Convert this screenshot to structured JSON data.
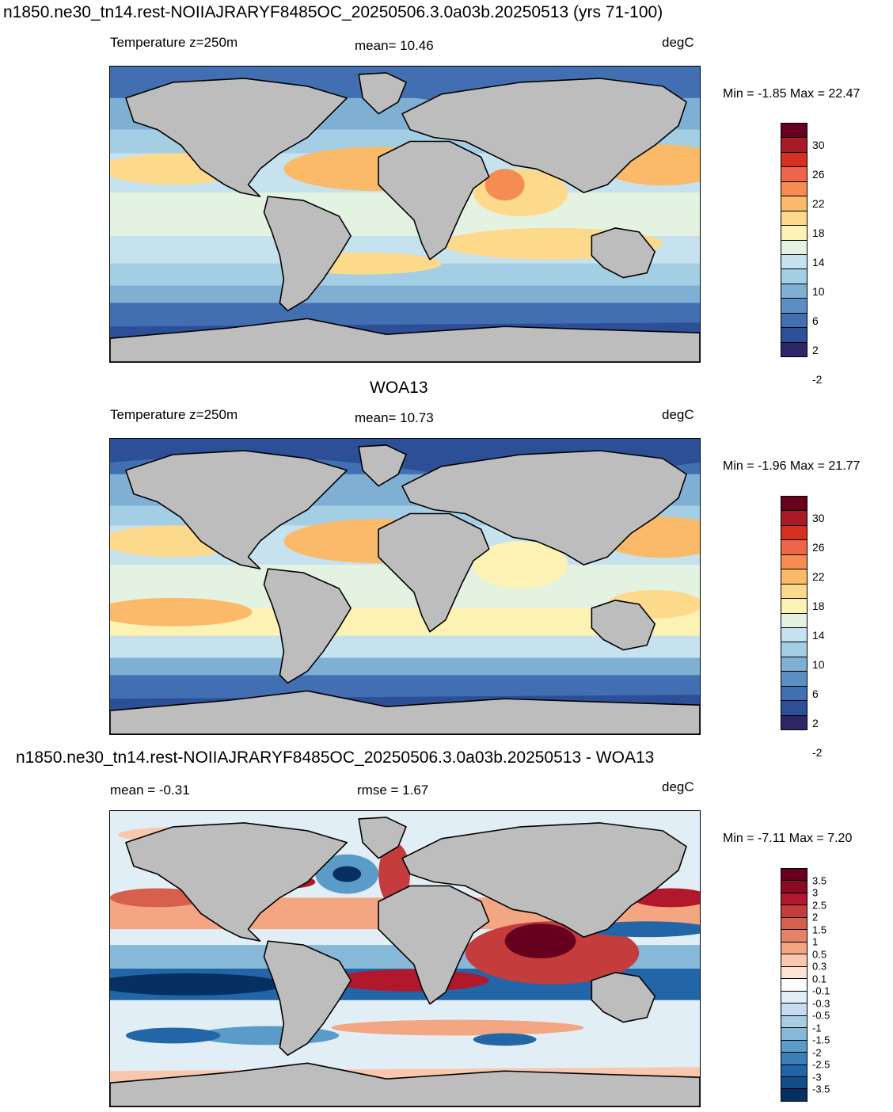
{
  "main_title": "n1850.ne30_tn14.rest-NOIIAJRARYF8485OC_20250506.3.0a03b.20250513 (yrs 71-100)",
  "panels": [
    {
      "id": "model",
      "title": "",
      "left_label": "Temperature z=250m",
      "center_label": "mean=  10.46",
      "units": "degC",
      "minmax": "Min =  -1.85 Max =  22.47",
      "colorbar_labels": [
        "30",
        "26",
        "22",
        "18",
        "14",
        "10",
        "6",
        "2",
        "-2"
      ],
      "colors": [
        "#67001f",
        "#a81a26",
        "#d7301f",
        "#ef6548",
        "#f58d52",
        "#fbb96a",
        "#fdd98b",
        "#fcf2b3",
        "#e4f2e1",
        "#c6e2ee",
        "#a3cee3",
        "#7fb0d4",
        "#5b8fc4",
        "#416fb1",
        "#2c4f97",
        "#2d2768"
      ]
    },
    {
      "id": "obs",
      "title": "WOA13",
      "left_label": "Temperature z=250m",
      "center_label": "mean=  10.73",
      "units": "degC",
      "minmax": "Min =  -1.96 Max =  21.77",
      "colorbar_labels": [
        "30",
        "26",
        "22",
        "18",
        "14",
        "10",
        "6",
        "2",
        "-2"
      ],
      "colors": [
        "#67001f",
        "#a81a26",
        "#d7301f",
        "#ef6548",
        "#f58d52",
        "#fbb96a",
        "#fdd98b",
        "#fcf2b3",
        "#e4f2e1",
        "#c6e2ee",
        "#a3cee3",
        "#7fb0d4",
        "#5b8fc4",
        "#416fb1",
        "#2c4f97",
        "#2d2768"
      ]
    },
    {
      "id": "diff",
      "title": "n1850.ne30_tn14.rest-NOIIAJRARYF8485OC_20250506.3.0a03b.20250513 - WOA13",
      "left_label": "mean =  -0.31",
      "center_label": "rmse =   1.67",
      "units": "degC",
      "minmax": "Min =  -7.11 Max =   7.20",
      "colorbar_labels": [
        "3.5",
        "3",
        "2.5",
        "2",
        "1.5",
        "1",
        "0.5",
        "0.3",
        "0.1",
        "-0.1",
        "-0.3",
        "-0.5",
        "-1",
        "-1.5",
        "-2",
        "-2.5",
        "-3",
        "-3.5"
      ],
      "colors": [
        "#67001f",
        "#8b0b25",
        "#b2182b",
        "#c43c3c",
        "#d6604d",
        "#e58267",
        "#f4a582",
        "#f9c7ad",
        "#fde3d4",
        "#ffffff",
        "#e1eef6",
        "#c6dbef",
        "#a6cde3",
        "#86b8d8",
        "#5a9bc8",
        "#3a7fb8",
        "#2266a8",
        "#134e8a",
        "#053061"
      ]
    }
  ]
}
